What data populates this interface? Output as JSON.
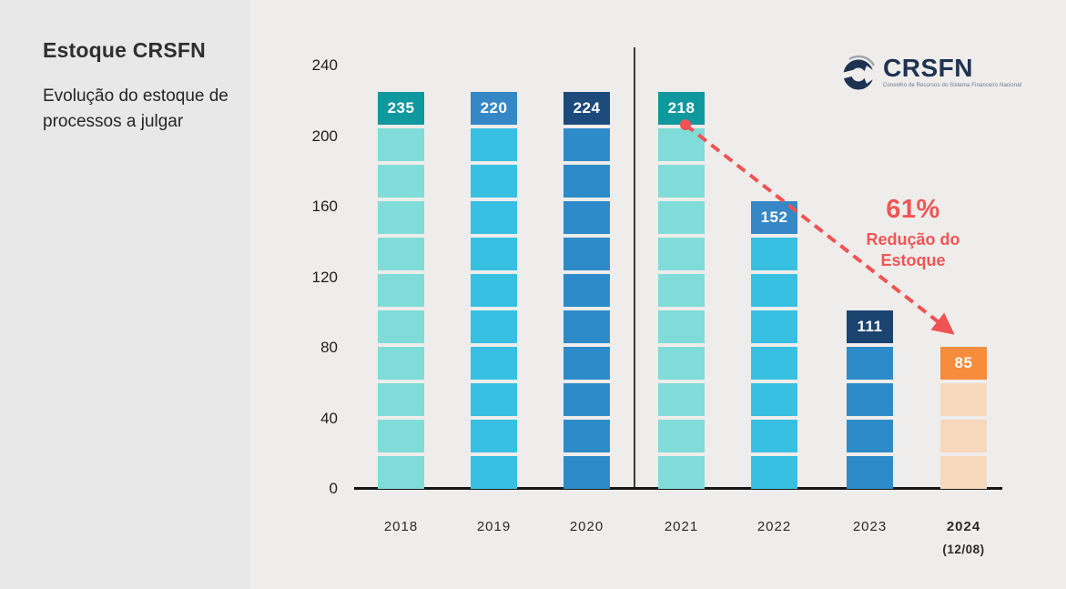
{
  "sidebar": {
    "title": "Estoque CRSFN",
    "subtitle": "Evolução do estoque de processos a julgar"
  },
  "logo": {
    "text": "CRSFN",
    "tagline": "Conselho de Recursos do Sistema Financeiro Nacional"
  },
  "annotation": {
    "percent": "61%",
    "label_line1": "Redução do",
    "label_line2": "Estoque",
    "color": "#F15555"
  },
  "chart_data": {
    "type": "bar",
    "title": "Estoque CRSFN — Evolução do estoque de processos a julgar",
    "categories": [
      "2018",
      "2019",
      "2020",
      "2021",
      "2022",
      "2023",
      "2024"
    ],
    "category_sublabels": [
      "",
      "",
      "",
      "",
      "",
      "",
      "(12/08)"
    ],
    "values": [
      235,
      220,
      224,
      218,
      152,
      111,
      85
    ],
    "xlabel": "",
    "ylabel": "",
    "yticks": [
      0,
      40,
      80,
      120,
      160,
      200,
      240
    ],
    "ylim": [
      0,
      240
    ],
    "grid": false,
    "legend": false,
    "divider_after_index": 2,
    "annotation_text": "61% Redução do Estoque",
    "bar_styles": [
      {
        "header_color": "#10989F",
        "segment_color": "#7FDCD8",
        "segments": 10
      },
      {
        "header_color": "#3587C6",
        "segment_color": "#38C0E2",
        "segments": 10
      },
      {
        "header_color": "#1C4B7B",
        "segment_color": "#2E8BC9",
        "segments": 10
      },
      {
        "header_color": "#10989F",
        "segment_color": "#7FDCD8",
        "segments": 10
      },
      {
        "header_color": "#3587C6",
        "segment_color": "#38C0E2",
        "segments": 7
      },
      {
        "header_color": "#1B4370",
        "segment_color": "#2E8BC9",
        "segments": 4
      },
      {
        "header_color": "#F68C3C",
        "segment_color": "#F8D8BD",
        "segments": 3
      }
    ],
    "trend_color": "#F05353"
  }
}
